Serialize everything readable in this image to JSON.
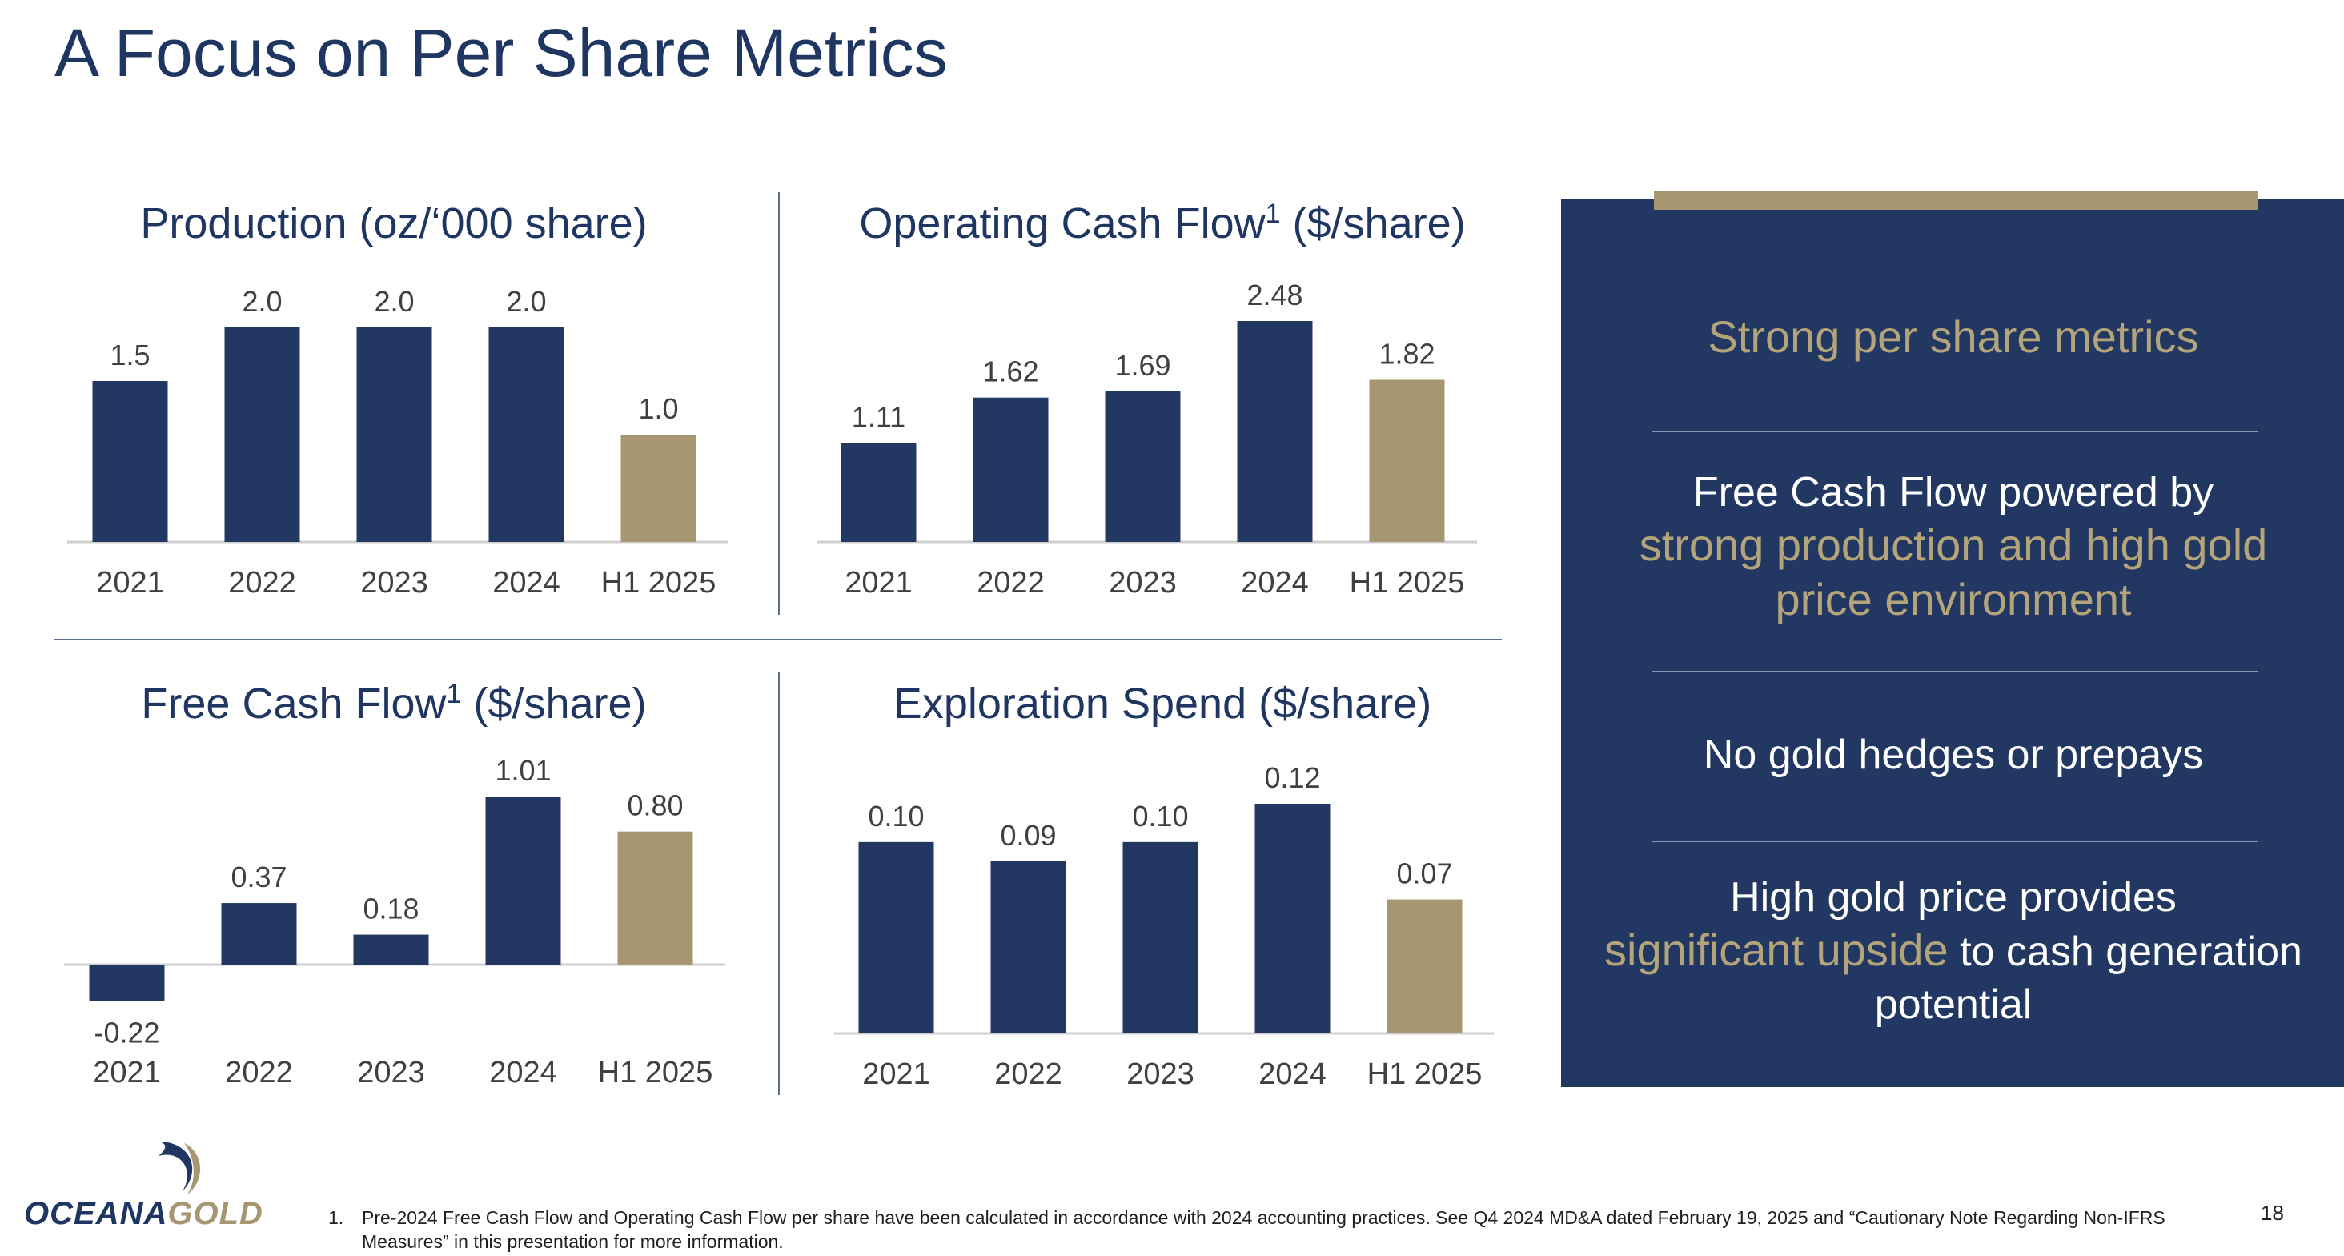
{
  "page": {
    "title": "A Focus on Per Share Metrics",
    "page_number": "18"
  },
  "colors": {
    "navy": "#223761",
    "gold": "#a69770",
    "axis": "#cfcfcf",
    "label": "#404040"
  },
  "chart_data": [
    {
      "id": "production",
      "type": "bar",
      "title": "Production (oz/‘000 share)",
      "title_main": "Production (oz/‘000 share)",
      "title_sup": "",
      "title_tail": "",
      "categories": [
        "2021",
        "2022",
        "2023",
        "2024",
        "H1 2025"
      ],
      "values": [
        1.5,
        2.0,
        2.0,
        2.0,
        1.0
      ],
      "value_labels": [
        "1.5",
        "2.0",
        "2.0",
        "2.0",
        "1.0"
      ],
      "highlight_last": true,
      "ylim": [
        0,
        2.0
      ]
    },
    {
      "id": "ocf",
      "type": "bar",
      "title": "Operating Cash Flow1 ($/share)",
      "title_main": "Operating Cash Flow",
      "title_sup": "1",
      "title_tail": " ($/share)",
      "categories": [
        "2021",
        "2022",
        "2023",
        "2024",
        "H1 2025"
      ],
      "values": [
        1.11,
        1.62,
        1.69,
        2.48,
        1.82
      ],
      "value_labels": [
        "1.11",
        "1.62",
        "1.69",
        "2.48",
        "1.82"
      ],
      "highlight_last": true,
      "ylim": [
        0,
        2.48
      ]
    },
    {
      "id": "fcf",
      "type": "bar",
      "title": "Free Cash Flow1 ($/share)",
      "title_main": "Free Cash Flow",
      "title_sup": "1",
      "title_tail": " ($/share)",
      "categories": [
        "2021",
        "2022",
        "2023",
        "2024",
        "H1 2025"
      ],
      "values": [
        -0.22,
        0.37,
        0.18,
        1.01,
        0.8
      ],
      "value_labels": [
        "-0.22",
        "0.37",
        "0.18",
        "1.01",
        "0.80"
      ],
      "highlight_last": true,
      "ylim": [
        -0.22,
        1.01
      ]
    },
    {
      "id": "exploration",
      "type": "bar",
      "title": "Exploration Spend ($/share)",
      "title_main": "Exploration Spend ($/share)",
      "title_sup": "",
      "title_tail": "",
      "categories": [
        "2021",
        "2022",
        "2023",
        "2024",
        "H1 2025"
      ],
      "values": [
        0.1,
        0.09,
        0.1,
        0.12,
        0.07
      ],
      "value_labels": [
        "0.10",
        "0.09",
        "0.10",
        "0.12",
        "0.07"
      ],
      "highlight_last": true,
      "ylim": [
        0,
        0.12
      ]
    }
  ],
  "panel": {
    "heading": "Strong per share metrics",
    "point1_pre": "Free Cash Flow powered by",
    "point1_gold": "strong production and high gold price environment",
    "point2": "No gold hedges or prepays",
    "point3_pre": "High gold price provides",
    "point3_gold": "significant upside",
    "point3_post": " to cash generation potential"
  },
  "footnote": {
    "number": "1.",
    "text": "Pre-2024 Free Cash Flow and Operating Cash Flow per share have been calculated in accordance with 2024 accounting practices. See Q4 2024 MD&A dated February 19, 2025 and “Cautionary Note Regarding Non-IFRS Measures” in this presentation for more information."
  },
  "logo": {
    "part1": "OCEANA",
    "part2": "GOLD"
  }
}
